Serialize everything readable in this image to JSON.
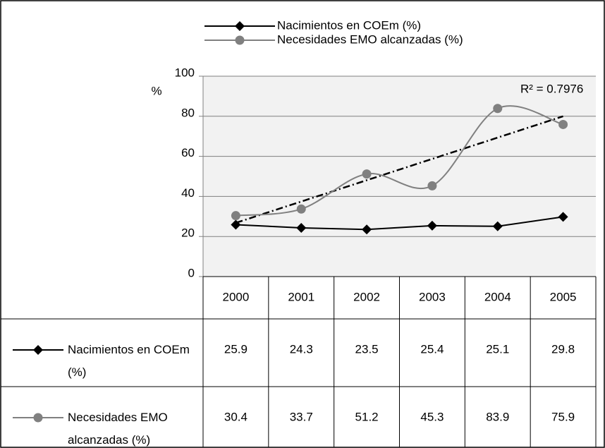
{
  "chart_data": {
    "type": "line",
    "categories": [
      "2000",
      "2001",
      "2002",
      "2003",
      "2004",
      "2005"
    ],
    "series": [
      {
        "name": "Nacimientos en COEm (%)",
        "color": "#000000",
        "marker": "diamond",
        "smooth": false,
        "values": [
          25.9,
          24.3,
          23.5,
          25.4,
          25.1,
          29.8
        ]
      },
      {
        "name": "Necesidades EMO alcanzadas (%)",
        "color": "#808080",
        "marker": "circle",
        "smooth": true,
        "trendline": "linear",
        "values": [
          30.4,
          33.7,
          51.2,
          45.3,
          83.9,
          75.9
        ]
      }
    ],
    "ylabel": "%",
    "ylim": [
      0,
      100
    ],
    "yticks": [
      0,
      20,
      40,
      60,
      80,
      100
    ],
    "grid": true,
    "annotation": "R² = 0.7976",
    "legend": "top",
    "data_table": true
  }
}
